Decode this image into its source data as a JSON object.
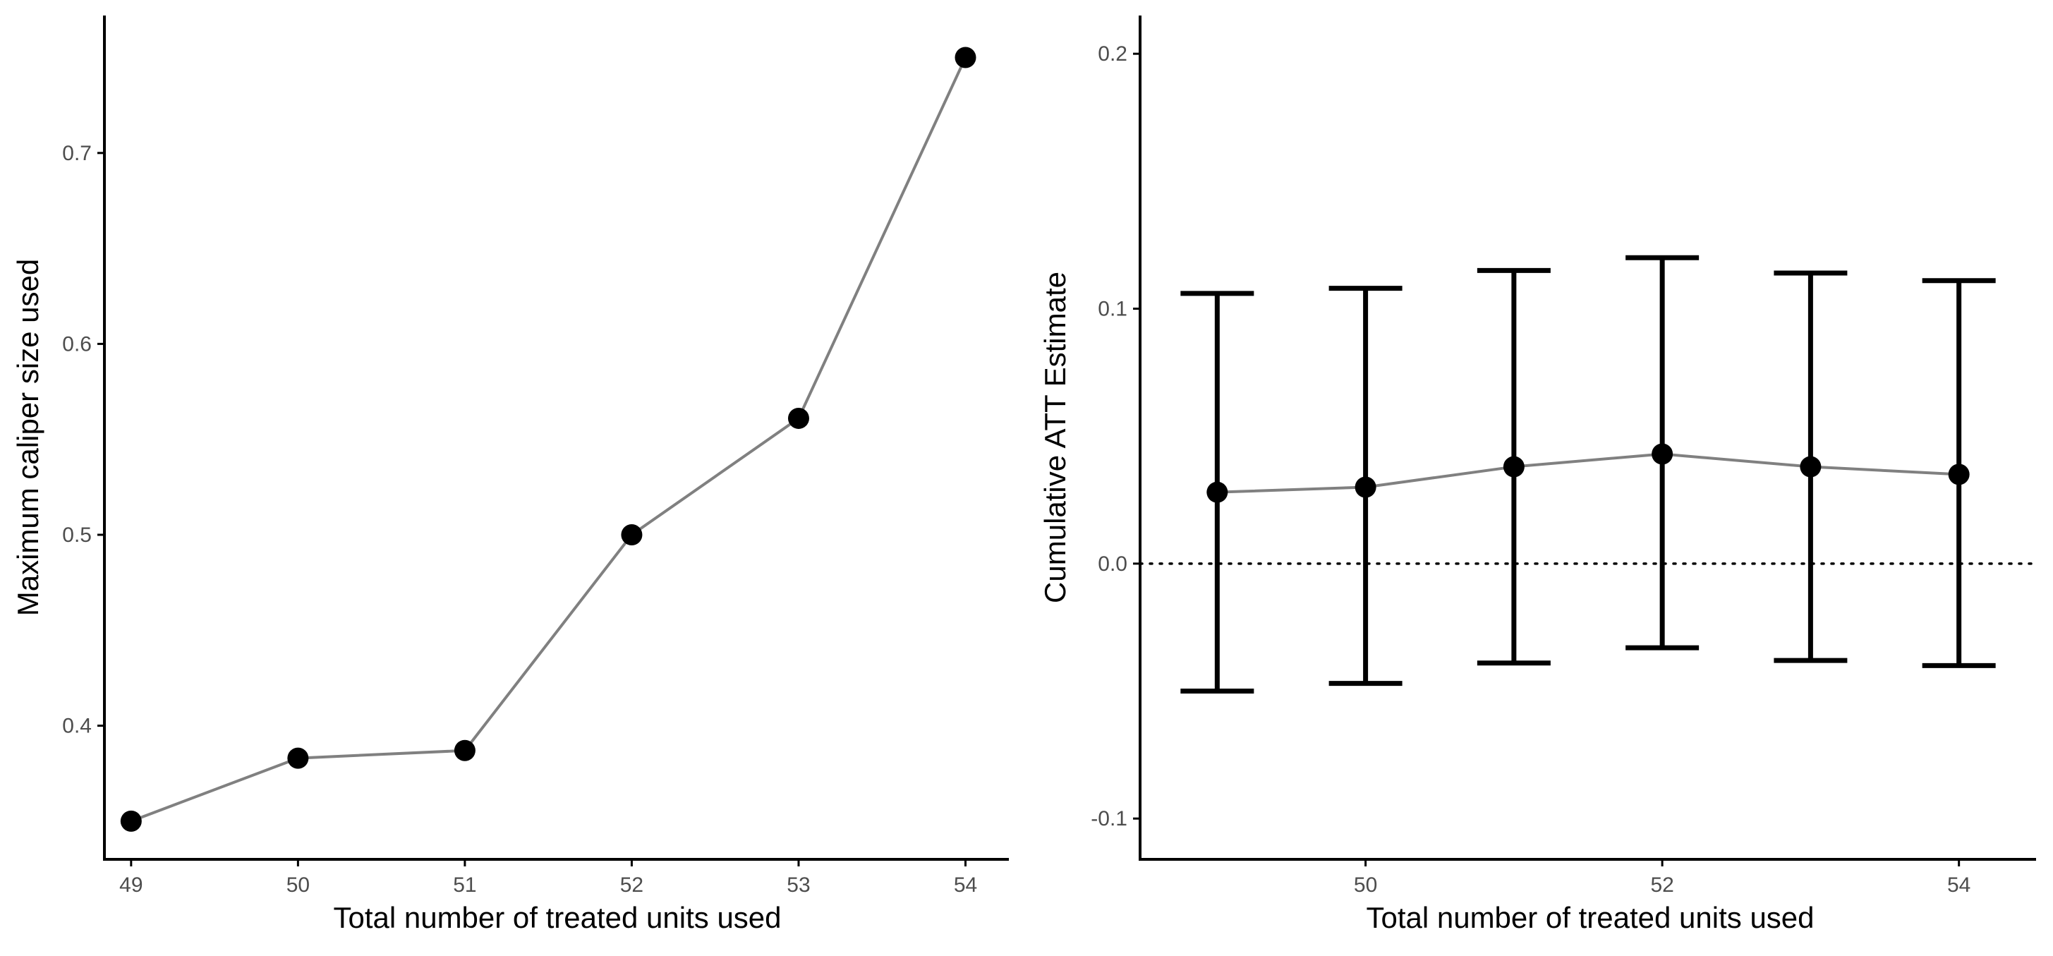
{
  "colors": {
    "line": "#808080",
    "point": "#000000",
    "axis": "#000000",
    "tick_text": "#4d4d4d",
    "errorbar": "#000000",
    "reference_line": "#000000"
  },
  "chart_data": [
    {
      "type": "line",
      "title": "",
      "xlabel": "Total number of treated units used",
      "ylabel": "Maximum caliper size used",
      "x": [
        49,
        50,
        51,
        52,
        53,
        54
      ],
      "y": [
        0.35,
        0.383,
        0.387,
        0.5,
        0.561,
        0.75
      ],
      "xticks": [
        49,
        50,
        51,
        52,
        53,
        54
      ],
      "xtick_labels": [
        "49",
        "50",
        "51",
        "52",
        "53",
        "54"
      ],
      "yticks": [
        0.4,
        0.5,
        0.6,
        0.7
      ],
      "ytick_labels": [
        "0.4",
        "0.5",
        "0.6",
        "0.7"
      ],
      "xlim": [
        48.84,
        54.26
      ],
      "ylim": [
        0.33,
        0.772
      ],
      "markers": true,
      "grid": false,
      "legend": "none"
    },
    {
      "type": "line",
      "title": "",
      "xlabel": "Total number of treated units used",
      "ylabel": "Cumulative ATT Estimate",
      "x": [
        49,
        50,
        51,
        52,
        53,
        54
      ],
      "y": [
        0.028,
        0.03,
        0.038,
        0.043,
        0.038,
        0.035
      ],
      "error_lower": [
        -0.05,
        -0.047,
        -0.039,
        -0.033,
        -0.038,
        -0.04
      ],
      "error_upper": [
        0.106,
        0.108,
        0.115,
        0.12,
        0.114,
        0.111
      ],
      "hline": 0.0,
      "hline_style": "dotted",
      "xticks": [
        50,
        52,
        54
      ],
      "xtick_labels": [
        "50",
        "52",
        "54"
      ],
      "yticks": [
        -0.1,
        0.0,
        0.1,
        0.2
      ],
      "ytick_labels": [
        "-0.1",
        "0.0",
        "0.1",
        "0.2"
      ],
      "xlim": [
        48.48,
        54.52
      ],
      "ylim": [
        -0.116,
        0.215
      ],
      "markers": true,
      "grid": false,
      "legend": "none"
    }
  ]
}
